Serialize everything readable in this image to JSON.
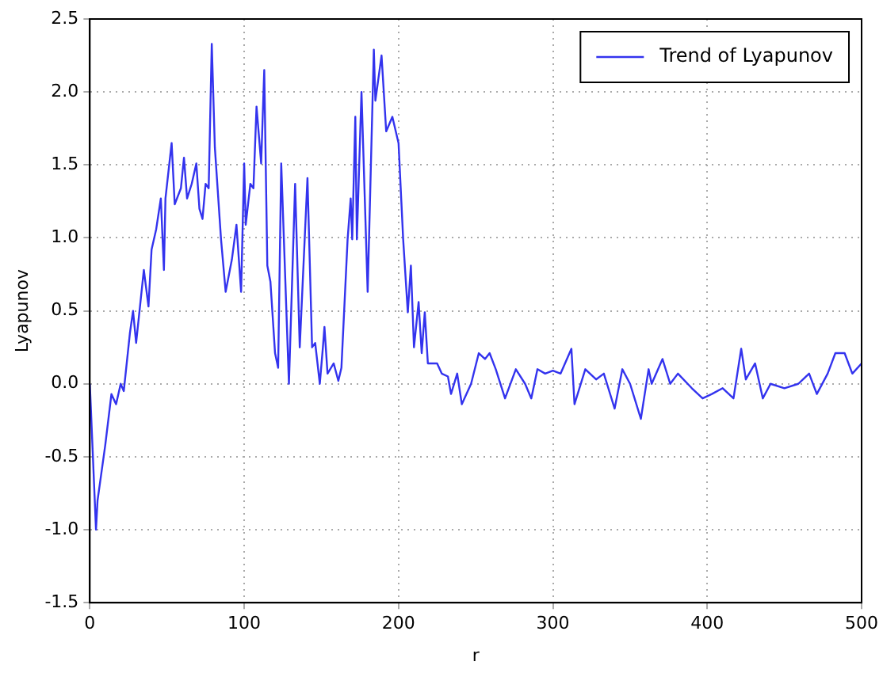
{
  "chart_data": {
    "type": "line",
    "xlabel": "r",
    "ylabel": "Lyapunov",
    "xlim": [
      0,
      500
    ],
    "xticks": [
      0,
      100,
      200,
      300,
      400,
      500
    ],
    "ylim": [
      -1.5,
      2.5
    ],
    "yticks": [
      -1.5,
      {
        "value": -1,
        "label": "-1.0"
      },
      -0.5,
      {
        "value": 0,
        "label": "0.0"
      },
      0.5,
      {
        "value": 1,
        "label": "1.0"
      },
      1.5,
      {
        "value": 2,
        "label": "2.0"
      },
      2.5
    ],
    "grid": true,
    "legend": "top right",
    "marker": "none",
    "line_style": "solid",
    "series": [
      {
        "name": "Trend of Lyapunov",
        "color": "#3333ee",
        "x": [
          0,
          4,
          5,
          10,
          14,
          17,
          20,
          22,
          26,
          28,
          30,
          35,
          38,
          40,
          43,
          46,
          48,
          49,
          53,
          55,
          59,
          61,
          63,
          66,
          69,
          71,
          73,
          75,
          77,
          79,
          81,
          85,
          88,
          92,
          95,
          98,
          100,
          101,
          104,
          106,
          108,
          111,
          113,
          115,
          117,
          120,
          122,
          124,
          129,
          133,
          136,
          141,
          144,
          146,
          149,
          151,
          152,
          154,
          158,
          161,
          163,
          167,
          169,
          170,
          172,
          173,
          176,
          180,
          184,
          185,
          189,
          192,
          196,
          200,
          203,
          206,
          208,
          210,
          213,
          215,
          217,
          219,
          225,
          228,
          232,
          234,
          238,
          241,
          247,
          252,
          256,
          259,
          263,
          269,
          276,
          282,
          286,
          290,
          295,
          300,
          305,
          312,
          314,
          321,
          328,
          333,
          340,
          345,
          350,
          357,
          362,
          364,
          371,
          376,
          381,
          390,
          397,
          403,
          410,
          417,
          422,
          425,
          431,
          436,
          441,
          450,
          459,
          466,
          471,
          478,
          483,
          489,
          494,
          500
        ],
        "values": [
          0,
          -1.0,
          -0.8,
          -0.42,
          -0.07,
          -0.14,
          0,
          -0.05,
          0.35,
          0.5,
          0.28,
          0.78,
          0.53,
          0.92,
          1.06,
          1.27,
          0.78,
          1.27,
          1.65,
          1.23,
          1.34,
          1.55,
          1.27,
          1.37,
          1.51,
          1.2,
          1.13,
          1.37,
          1.34,
          2.33,
          1.62,
          0.99,
          0.63,
          0.85,
          1.09,
          0.63,
          1.51,
          1.09,
          1.37,
          1.34,
          1.9,
          1.51,
          2.15,
          0.81,
          0.7,
          0.21,
          0.11,
          1.51,
          0,
          1.37,
          0.25,
          1.41,
          0.25,
          0.28,
          0,
          0.25,
          0.39,
          0.07,
          0.14,
          0.02,
          0.11,
          0.99,
          1.27,
          0.99,
          1.83,
          0.99,
          2.0,
          0.63,
          2.29,
          1.94,
          2.25,
          1.73,
          1.83,
          1.65,
          0.99,
          0.49,
          0.81,
          0.25,
          0.56,
          0.21,
          0.49,
          0.14,
          0.14,
          0.07,
          0.05,
          -0.07,
          0.07,
          -0.14,
          0,
          0.21,
          0.17,
          0.21,
          0.1,
          -0.1,
          0.1,
          0,
          -0.1,
          0.1,
          0.07,
          0.09,
          0.07,
          0.24,
          -0.14,
          0.1,
          0.03,
          0.07,
          -0.17,
          0.1,
          0,
          -0.24,
          0.1,
          0,
          0.17,
          0,
          0.07,
          -0.03,
          -0.1,
          -0.07,
          -0.03,
          -0.1,
          0.24,
          0.03,
          0.14,
          -0.1,
          0,
          -0.03,
          0,
          0.07,
          -0.07,
          0.07,
          0.21,
          0.21,
          0.07,
          0.14
        ]
      }
    ]
  }
}
